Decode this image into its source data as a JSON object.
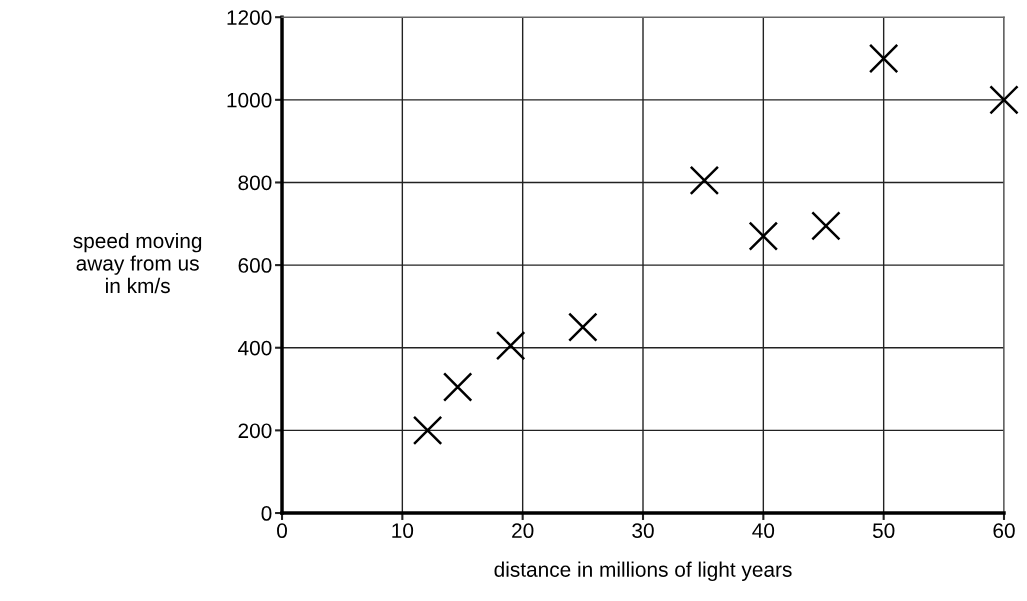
{
  "chart_data": {
    "type": "scatter",
    "xlabel": "distance in millions of light years",
    "ylabel": "speed moving\naway from us\nin km/s",
    "x": [
      12.1,
      14.6,
      19,
      25,
      35.1,
      40,
      45.2,
      50,
      60
    ],
    "values": [
      200,
      305,
      405,
      450,
      805,
      670,
      695,
      1100,
      1000
    ],
    "color": "#000000",
    "marker": "cross",
    "xlim": [
      0,
      60
    ],
    "xticks": [
      0,
      10,
      20,
      30,
      40,
      50,
      60
    ],
    "ylim": [
      0,
      1200
    ],
    "yticks": [
      0,
      200,
      400,
      600,
      800,
      1000,
      1200
    ],
    "grid": true
  }
}
